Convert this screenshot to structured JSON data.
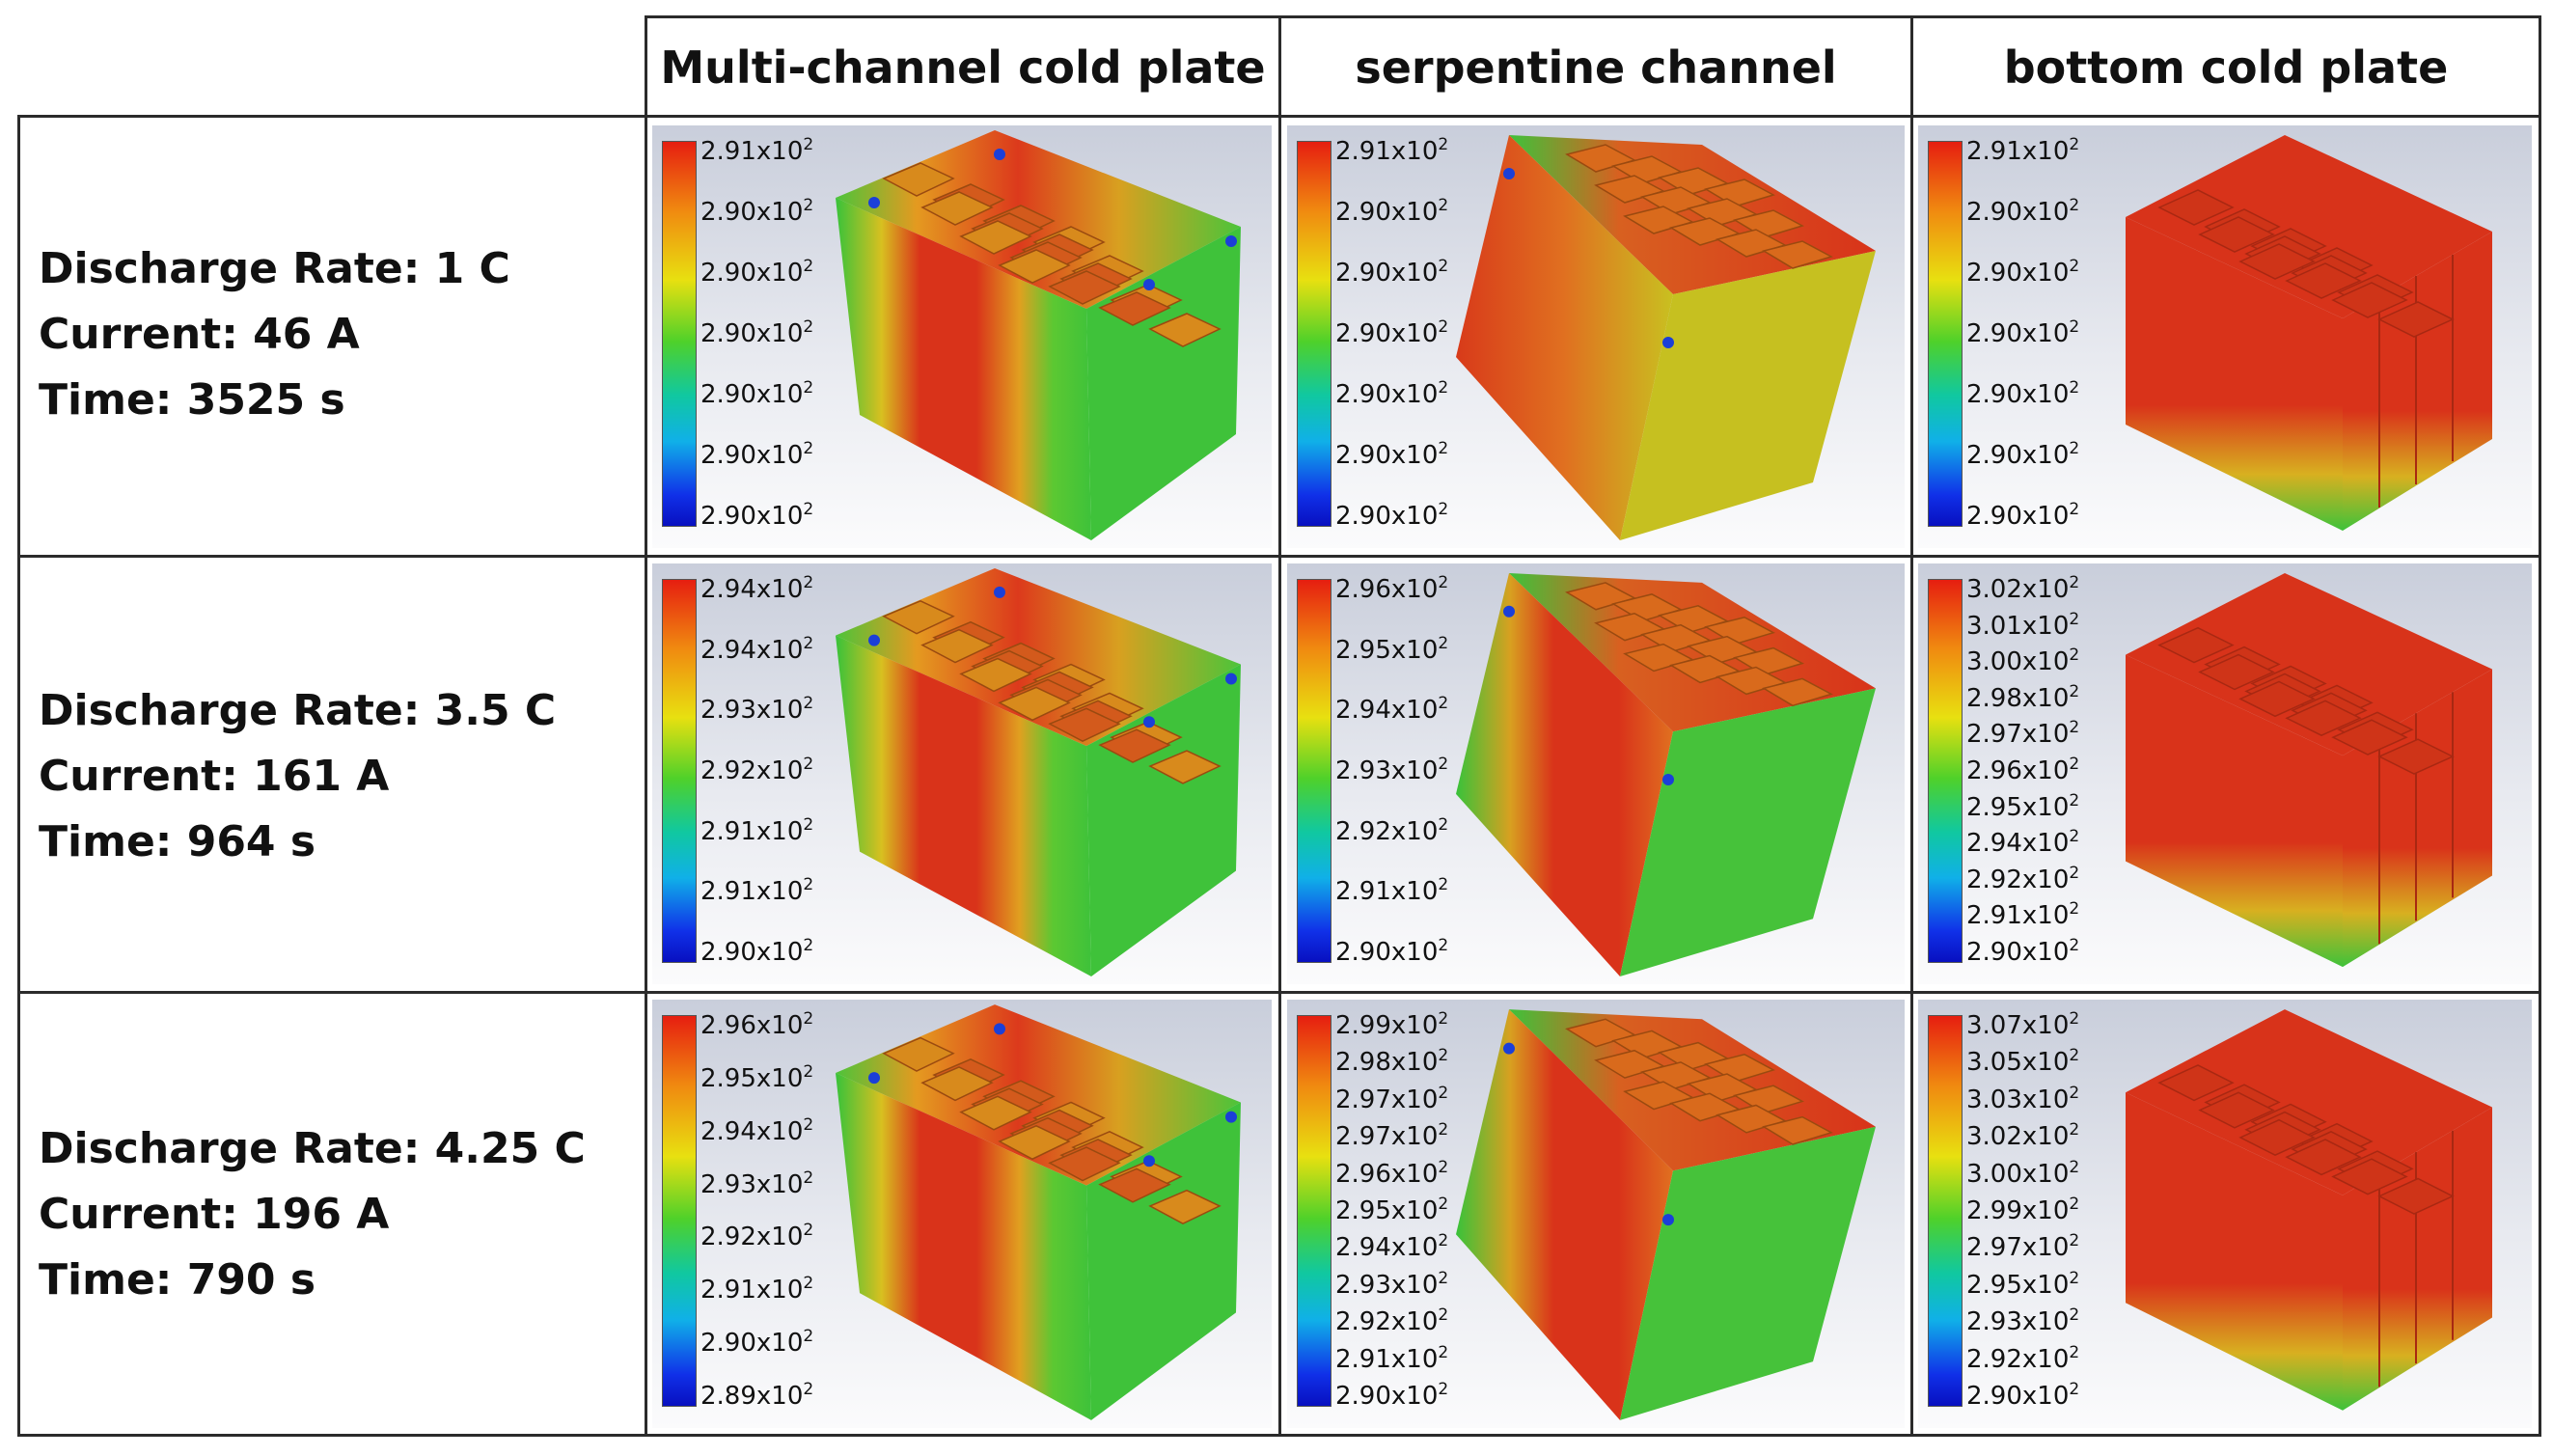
{
  "columns": [
    {
      "title": "Multi-channel cold plate"
    },
    {
      "title": "serpentine channel"
    },
    {
      "title": "bottom cold plate"
    }
  ],
  "rows": [
    {
      "lines": [
        "Discharge Rate: 1 C",
        "Current: 46 A",
        "Time: 3525 s"
      ],
      "panels": [
        {
          "ticks": [
            "2.91x10",
            "2.90x10",
            "2.90x10",
            "2.90x10",
            "2.90x10",
            "2.90x10",
            "2.90x10"
          ]
        },
        {
          "ticks": [
            "2.91x10",
            "2.90x10",
            "2.90x10",
            "2.90x10",
            "2.90x10",
            "2.90x10",
            "2.90x10"
          ]
        },
        {
          "ticks": [
            "2.91x10",
            "2.90x10",
            "2.90x10",
            "2.90x10",
            "2.90x10",
            "2.90x10",
            "2.90x10"
          ]
        }
      ]
    },
    {
      "lines": [
        "Discharge Rate: 3.5 C",
        "Current: 161 A",
        "Time: 964 s"
      ],
      "panels": [
        {
          "ticks": [
            "2.94x10",
            "2.94x10",
            "2.93x10",
            "2.92x10",
            "2.91x10",
            "2.91x10",
            "2.90x10"
          ]
        },
        {
          "ticks": [
            "2.96x10",
            "2.95x10",
            "2.94x10",
            "2.93x10",
            "2.92x10",
            "2.91x10",
            "2.90x10"
          ]
        },
        {
          "ticks": [
            "3.02x10",
            "3.01x10",
            "3.00x10",
            "2.98x10",
            "2.97x10",
            "2.96x10",
            "2.95x10",
            "2.94x10",
            "2.92x10",
            "2.91x10",
            "2.90x10"
          ]
        }
      ]
    },
    {
      "lines": [
        "Discharge Rate: 4.25 C",
        "Current: 196 A",
        "Time: 790 s"
      ],
      "panels": [
        {
          "ticks": [
            "2.96x10",
            "2.95x10",
            "2.94x10",
            "2.93x10",
            "2.92x10",
            "2.91x10",
            "2.90x10",
            "2.89x10"
          ]
        },
        {
          "ticks": [
            "2.99x10",
            "2.98x10",
            "2.97x10",
            "2.97x10",
            "2.96x10",
            "2.95x10",
            "2.94x10",
            "2.93x10",
            "2.92x10",
            "2.91x10",
            "2.90x10"
          ]
        },
        {
          "ticks": [
            "3.07x10",
            "3.05x10",
            "3.03x10",
            "3.02x10",
            "3.00x10",
            "2.99x10",
            "2.97x10",
            "2.95x10",
            "2.93x10",
            "2.92x10",
            "2.90x10"
          ]
        }
      ]
    }
  ],
  "tick_exponent": "2",
  "colors": {
    "hot": "#d8321a",
    "mid": "#c9c020",
    "cool": "#3ec83a",
    "grid": "#2b2b2b"
  }
}
